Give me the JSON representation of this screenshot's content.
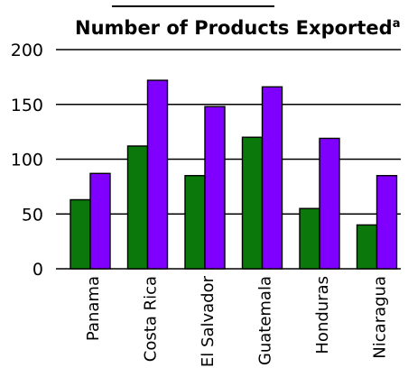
{
  "chart_data": {
    "type": "bar",
    "title": "Number of Products Exported",
    "title_superscript": "a",
    "categories": [
      "Panama",
      "Costa Rica",
      "El Salvador",
      "Guatemala",
      "Honduras",
      "Nicaragua"
    ],
    "series": [
      {
        "values": [
          63,
          112,
          85,
          120,
          55,
          40
        ],
        "color": "#0a780a"
      },
      {
        "values": [
          87,
          172,
          148,
          166,
          119,
          85
        ],
        "color": "#7f00ff"
      }
    ],
    "ylim": [
      0,
      200
    ],
    "yticks": [
      "0",
      "50",
      "100",
      "150",
      "200"
    ],
    "grid": true
  }
}
